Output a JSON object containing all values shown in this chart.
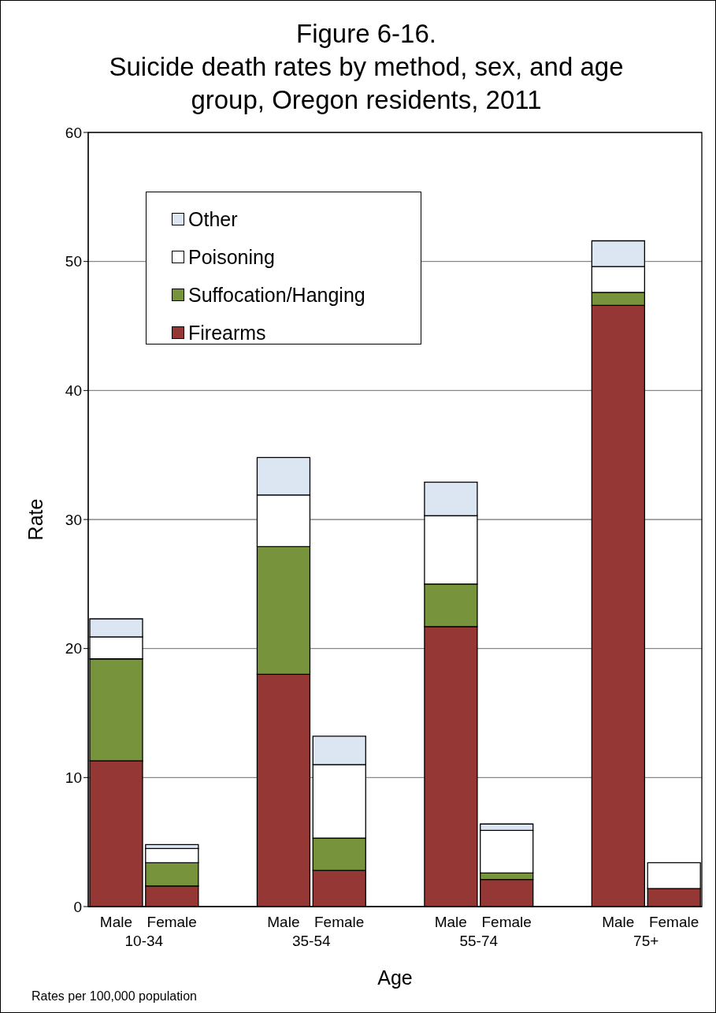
{
  "chart_data": {
    "type": "bar",
    "stacked": true,
    "title": "Figure 6-16.\nSuicide death rates by method, sex, and age group, Oregon residents, 2011",
    "xlabel": "Age",
    "ylabel": "Rate",
    "categories": [
      "Male",
      "Female",
      null,
      "Male",
      "Female",
      null,
      "Male",
      "Female",
      null,
      "Male",
      "Female"
    ],
    "series": [
      {
        "name": "Firearms",
        "color": "#953735",
        "values": [
          11.3,
          1.6,
          null,
          18.0,
          2.8,
          null,
          21.7,
          2.1,
          null,
          46.6,
          1.4
        ]
      },
      {
        "name": "Suffocation/Hanging",
        "color": "#77933c",
        "values": [
          7.9,
          1.8,
          null,
          9.9,
          2.5,
          null,
          3.3,
          0.5,
          null,
          1.0,
          0
        ]
      },
      {
        "name": "Poisoning",
        "color": "#ffffff",
        "values": [
          1.7,
          1.1,
          null,
          4.0,
          5.7,
          null,
          5.3,
          3.3,
          null,
          2.0,
          2.0
        ]
      },
      {
        "name": "Other",
        "color": "#dce6f2",
        "values": [
          1.4,
          0.3,
          null,
          2.9,
          2.2,
          null,
          2.6,
          0.5,
          null,
          2.0,
          0
        ]
      }
    ],
    "ylim": [
      0,
      60
    ],
    "yticks": [
      0,
      10,
      20,
      30,
      40,
      50,
      60
    ],
    "grid": "y",
    "legend": "top left",
    "annotations": [
      "10-34",
      "35-54",
      "55-74",
      "75+",
      "Rates per 100,000 population"
    ]
  }
}
